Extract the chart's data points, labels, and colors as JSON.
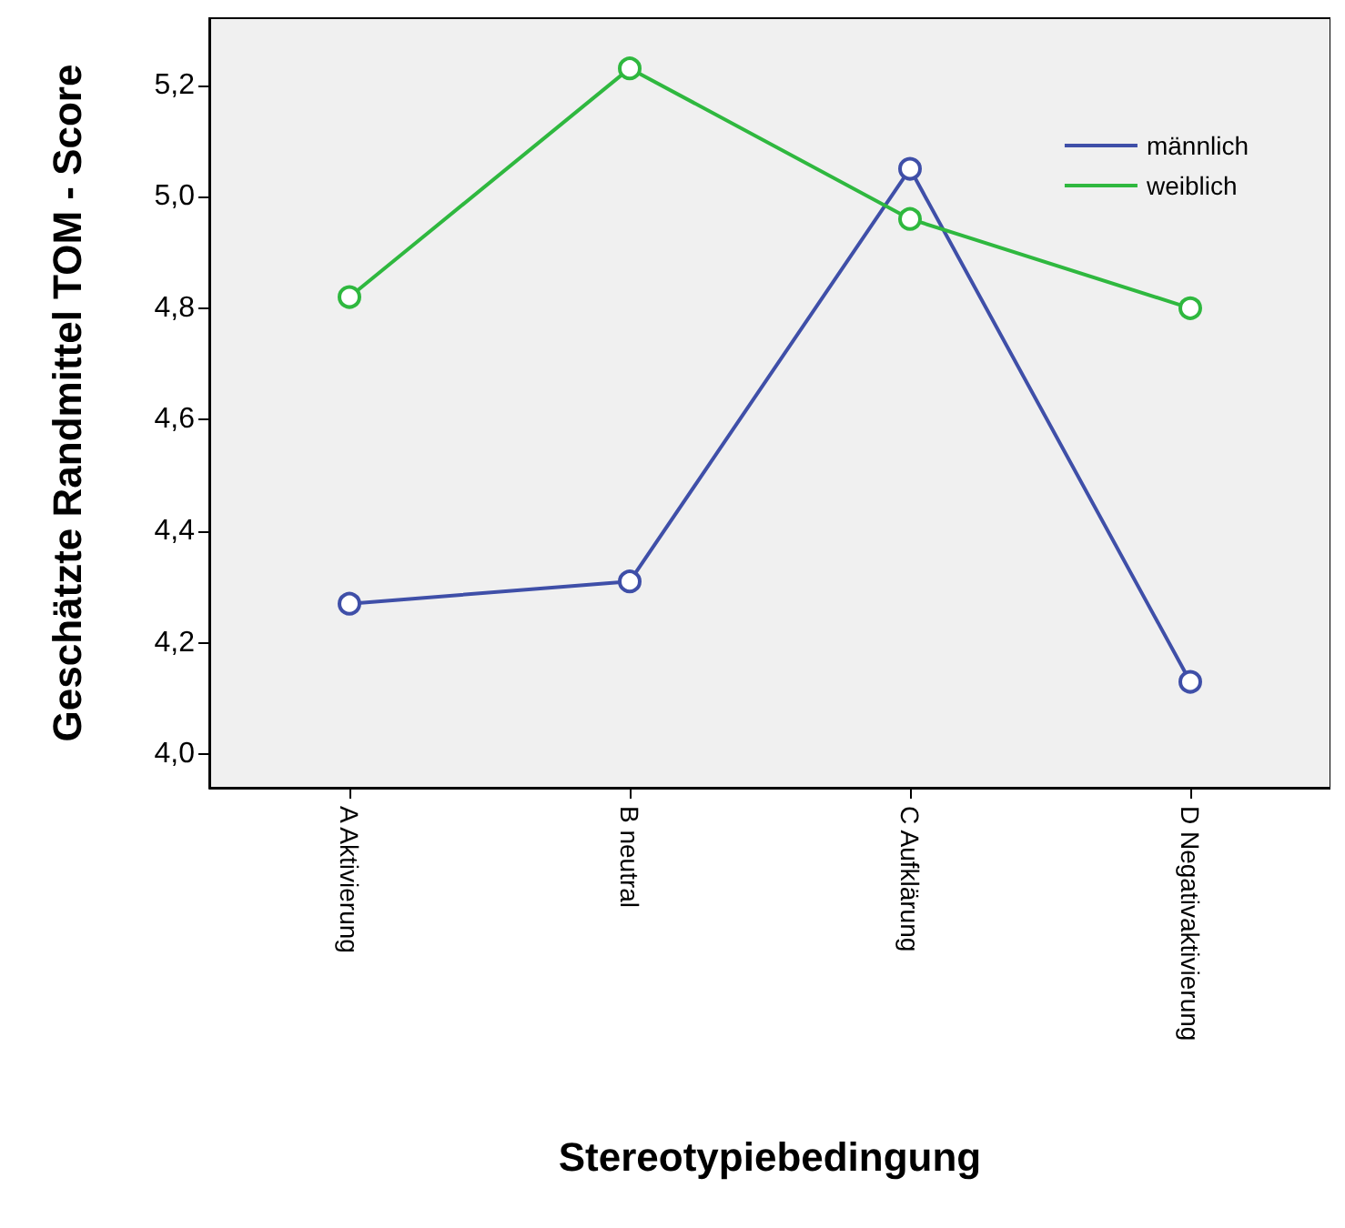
{
  "chart_data": {
    "type": "line",
    "xlabel": "Stereotypiebedingung",
    "ylabel": "Geschätzte Randmittel TOM - Score",
    "categories": [
      "A Aktivierung",
      "B neutral",
      "C Aufklärung",
      "D Negativaktivierung"
    ],
    "series": [
      {
        "name": "männlich",
        "color": "#3f4fa8",
        "values": [
          4.27,
          4.31,
          5.05,
          4.13
        ]
      },
      {
        "name": "weiblich",
        "color": "#2fb83f",
        "values": [
          4.82,
          5.23,
          4.96,
          4.8
        ]
      }
    ],
    "ylim": [
      3.94,
      5.32
    ],
    "yticks": [
      {
        "value": 4.0,
        "label": "4,0"
      },
      {
        "value": 4.2,
        "label": "4,2"
      },
      {
        "value": 4.4,
        "label": "4,4"
      },
      {
        "value": 4.6,
        "label": "4,6"
      },
      {
        "value": 4.8,
        "label": "4,8"
      },
      {
        "value": 5.0,
        "label": "5,0"
      },
      {
        "value": 5.2,
        "label": "5,2"
      }
    ],
    "grid": false,
    "legend": "top right",
    "marker": "circle",
    "line_style": "solid"
  }
}
